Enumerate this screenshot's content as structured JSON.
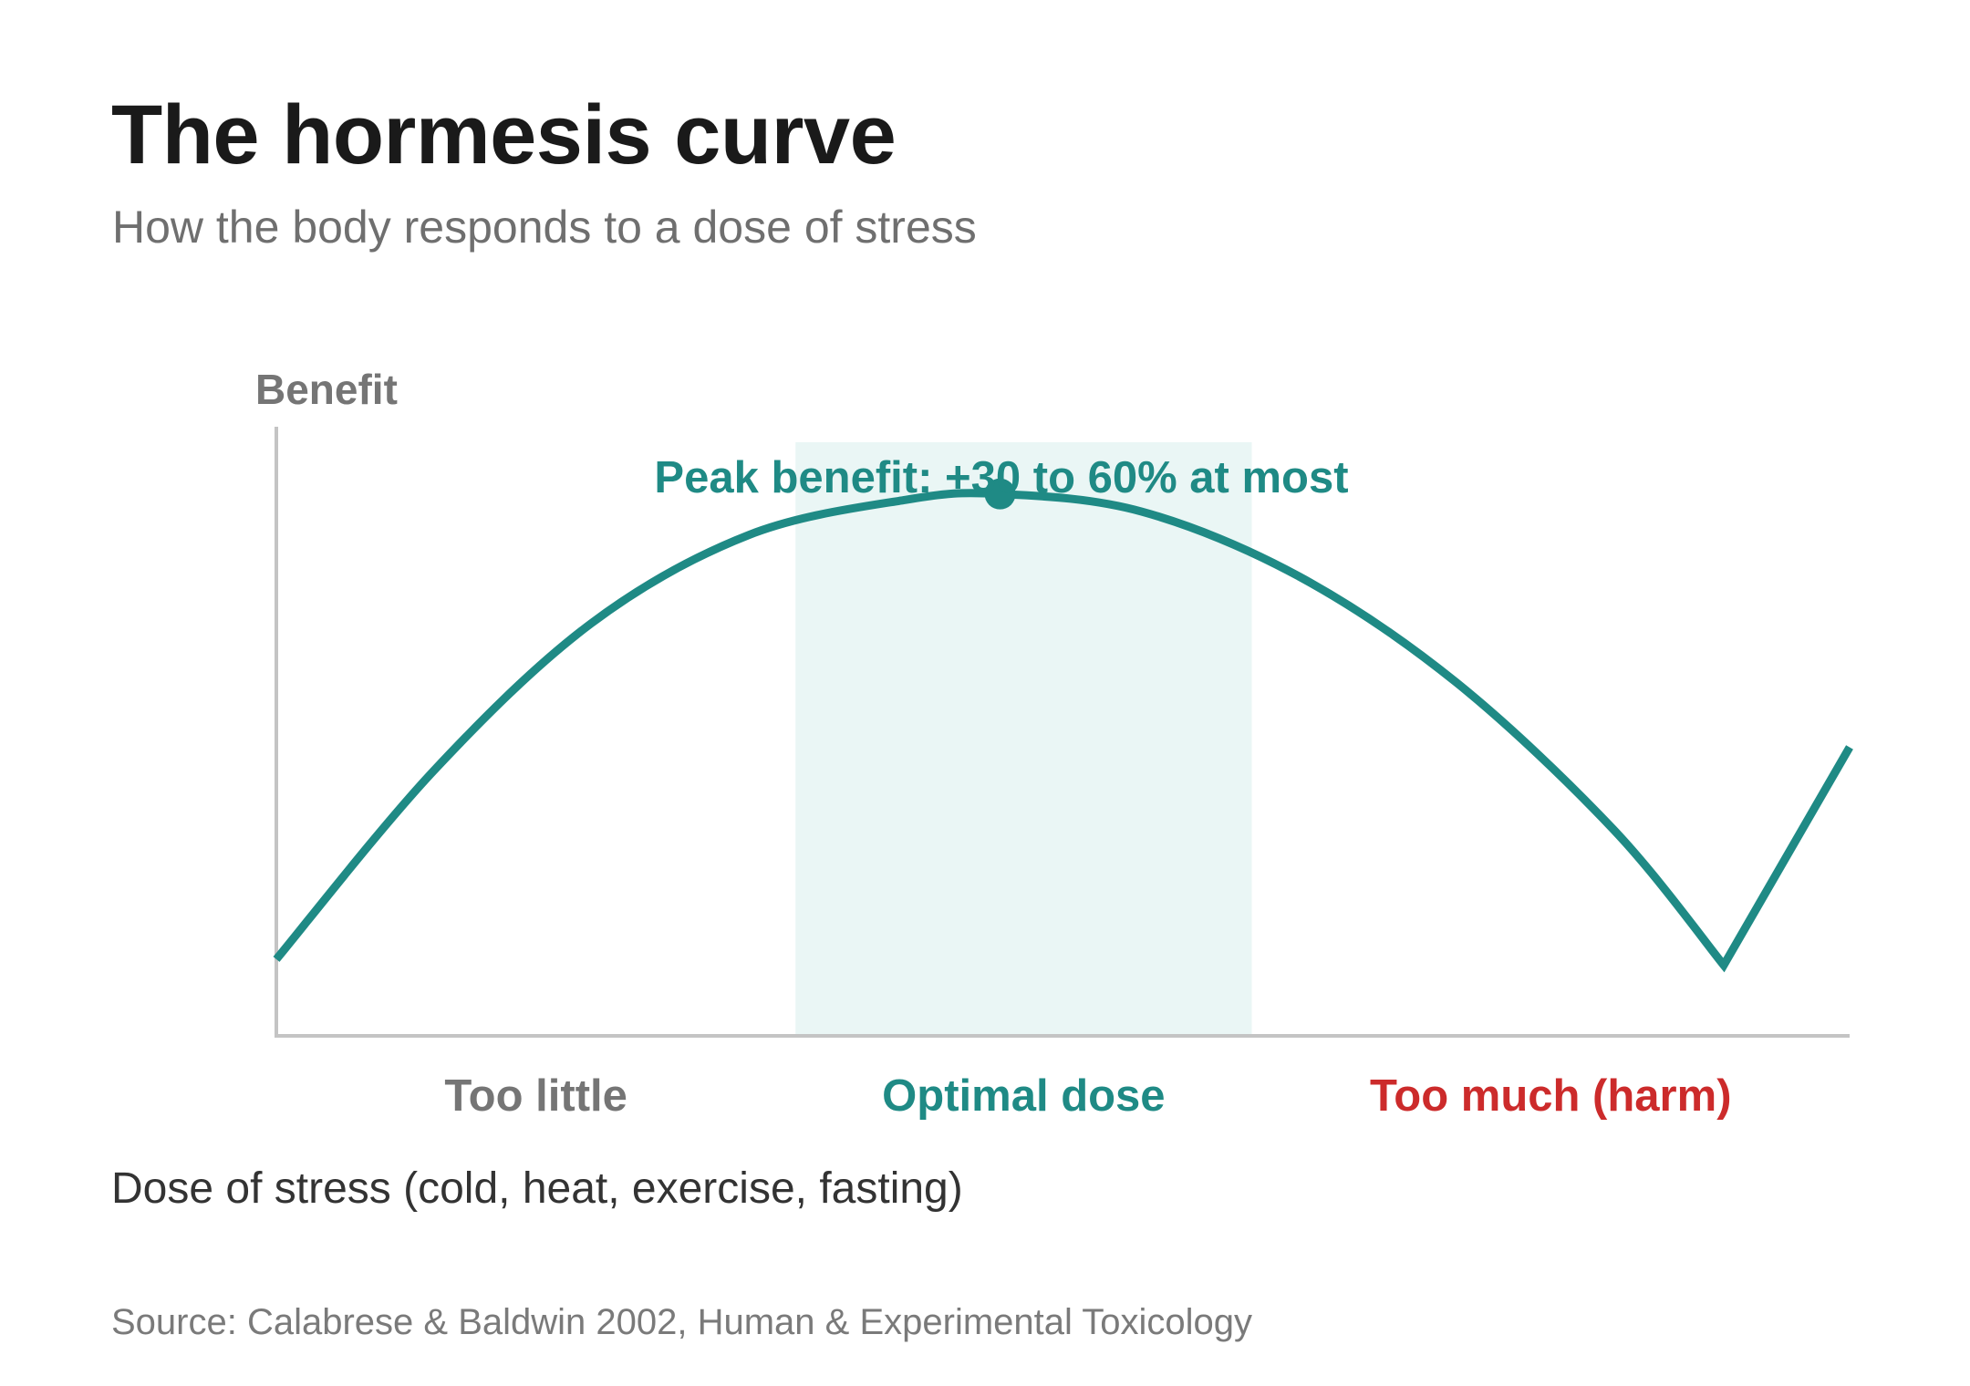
{
  "title": "The hormesis curve",
  "subtitle": "How the body responds to a dose of stress",
  "x_caption": "Dose of stress (cold, heat, exercise, fasting)",
  "source": "Source: Calabrese & Baldwin 2002, Human & Experimental Toxicology",
  "chart_data": {
    "type": "line",
    "ylabel": "Benefit",
    "xlabel": "Dose of stress (cold, heat, exercise, fasting)",
    "grid": false,
    "xlim": [
      0,
      100
    ],
    "ylim": [
      0,
      100
    ],
    "curve": {
      "color": "#1f8a85",
      "points": [
        {
          "x": 0,
          "y": 13
        },
        {
          "x": 10,
          "y": 45
        },
        {
          "x": 20,
          "y": 70
        },
        {
          "x": 30,
          "y": 85
        },
        {
          "x": 40,
          "y": 91
        },
        {
          "x": 46,
          "y": 92
        },
        {
          "x": 55,
          "y": 89
        },
        {
          "x": 65,
          "y": 78
        },
        {
          "x": 75,
          "y": 60
        },
        {
          "x": 85,
          "y": 35
        },
        {
          "x": 92,
          "y": 12
        },
        {
          "x": 100,
          "y": 49
        }
      ]
    },
    "peak": {
      "x": 46,
      "y": 92,
      "label": "Peak benefit: +30 to 60% at most",
      "color": "#1f8a85"
    },
    "optimal_band": {
      "x_start": 33,
      "x_end": 62,
      "color": "#eaf6f5"
    },
    "zones": [
      {
        "label": "Too little",
        "x": 16.5,
        "color": "#757575"
      },
      {
        "label": "Optimal dose",
        "x": 47.5,
        "color": "#1f8a85"
      },
      {
        "label": "Too much (harm)",
        "x": 81,
        "color": "#cc2b2b"
      }
    ],
    "axis_color": "#c4c4c4",
    "ylabel_color": "#757575"
  }
}
